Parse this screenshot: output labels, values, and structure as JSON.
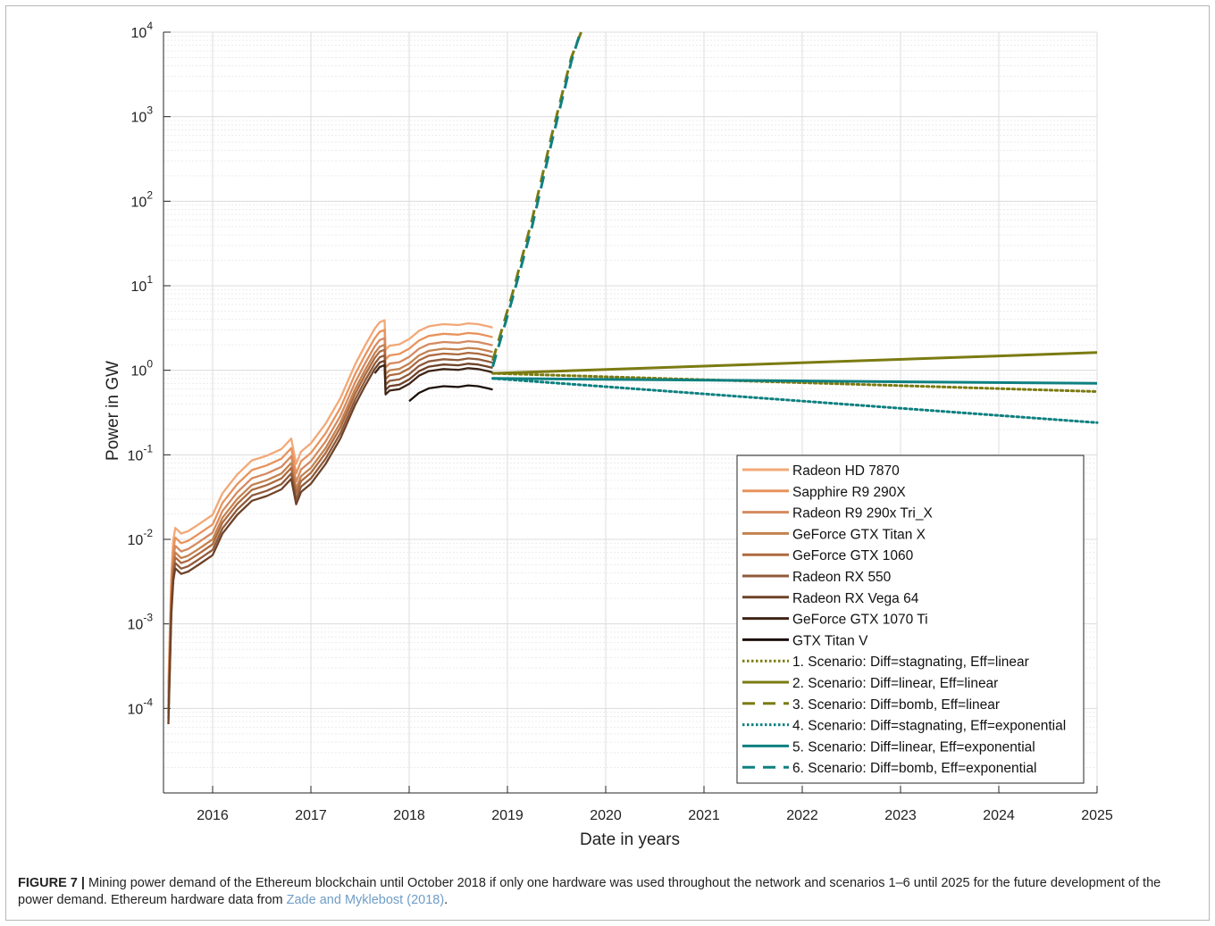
{
  "figure": {
    "caption_lead": "FIGURE 7 |",
    "caption_text": " Mining power demand of the Ethereum blockchain until October 2018 if only one hardware was used throughout the network and scenarios 1–6 until 2025 for the future development of the power demand. Ethereum hardware data from ",
    "caption_ref": "Zade and Myklebost (2018)",
    "caption_end": "."
  },
  "chart_data": {
    "type": "line",
    "xlabel": "Date in years",
    "ylabel": "Power in GW",
    "y_scale": "log",
    "xlim": [
      2015.5,
      2025
    ],
    "ylim": [
      1e-05,
      10000
    ],
    "grid": true,
    "minor_grid": true,
    "legend_position": "bottom-right",
    "x_ticks": [
      "2016",
      "2017",
      "2018",
      "2019",
      "2020",
      "2021",
      "2022",
      "2023",
      "2024",
      "2025"
    ],
    "y_ticks": [
      {
        "base": "10",
        "exp": "-4"
      },
      {
        "base": "10",
        "exp": "-3"
      },
      {
        "base": "10",
        "exp": "-2"
      },
      {
        "base": "10",
        "exp": "-1"
      },
      {
        "base": "10",
        "exp": "0"
      },
      {
        "base": "10",
        "exp": "1"
      },
      {
        "base": "10",
        "exp": "2"
      },
      {
        "base": "10",
        "exp": "3"
      },
      {
        "base": "10",
        "exp": "4"
      }
    ],
    "historical_shape": {
      "x": [
        2015.55,
        2015.58,
        2015.6,
        2015.62,
        2015.68,
        2015.75,
        2015.85,
        2016.0,
        2016.1,
        2016.25,
        2016.4,
        2016.55,
        2016.7,
        2016.8,
        2016.85,
        2016.9,
        2017.0,
        2017.15,
        2017.3,
        2017.45,
        2017.55,
        2017.65,
        2017.7,
        2017.75,
        2017.76,
        2017.8,
        2017.9,
        2018.0,
        2018.1,
        2018.2,
        2018.35,
        2018.5,
        2018.6,
        2018.7,
        2018.8,
        2018.85
      ],
      "y": [
        5e-05,
        0.001,
        0.0025,
        0.0035,
        0.003,
        0.0032,
        0.0038,
        0.005,
        0.009,
        0.015,
        0.022,
        0.025,
        0.03,
        0.04,
        0.02,
        0.028,
        0.035,
        0.06,
        0.12,
        0.3,
        0.5,
        0.8,
        0.95,
        1.0,
        0.45,
        0.5,
        0.52,
        0.6,
        0.75,
        0.85,
        0.9,
        0.88,
        0.92,
        0.9,
        0.85,
        0.82
      ]
    },
    "series": [
      {
        "name": "Radeon HD 7870",
        "color": "#f2a877",
        "style": "solid",
        "factor": 3.9
      },
      {
        "name": "Sapphire R9 290X",
        "color": "#e8935c",
        "style": "solid",
        "factor": 3.0
      },
      {
        "name": "Radeon R9 290x Tri_X",
        "color": "#d58a60",
        "style": "solid",
        "factor": 2.4
      },
      {
        "name": "GeForce GTX Titan X",
        "color": "#c3824f",
        "style": "solid",
        "factor": 2.0
      },
      {
        "name": "GeForce GTX 1060",
        "color": "#ad6a3f",
        "style": "solid",
        "factor": 1.75
      },
      {
        "name": "Radeon RX 550",
        "color": "#8f5a3b",
        "style": "solid",
        "factor": 1.5
      },
      {
        "name": "Radeon RX Vega 64",
        "color": "#6e4228",
        "style": "solid",
        "factor": 1.3
      },
      {
        "name": "GeForce GTX 1070 Ti",
        "color": "#3e2416",
        "style": "solid",
        "factor": 1.15,
        "start": 2017.65
      },
      {
        "name": "GTX Titan V",
        "color": "#1c1009",
        "style": "solid",
        "factor": 0.72,
        "start": 2017.95
      },
      {
        "name": "1. Scenario: Diff=stagnating, Eff=linear",
        "color": "#7b7b12",
        "style": "dotted",
        "x": [
          2018.85,
          2025
        ],
        "y": [
          0.92,
          0.56
        ]
      },
      {
        "name": "2. Scenario: Diff=linear, Eff=linear",
        "color": "#7b7b12",
        "style": "solid",
        "x": [
          2018.85,
          2025
        ],
        "y": [
          0.92,
          1.62
        ]
      },
      {
        "name": "3. Scenario: Diff=bomb, Eff=linear",
        "color": "#7b7b12",
        "style": "dashed",
        "x": [
          2018.85,
          2019.05,
          2019.25,
          2019.45,
          2019.65,
          2019.75
        ],
        "y": [
          1.3,
          8,
          60,
          600,
          5000,
          10000
        ]
      },
      {
        "name": "4. Scenario: Diff=stagnating, Eff=exponential",
        "color": "#0f8080",
        "style": "dotted",
        "x": [
          2018.85,
          2025
        ],
        "y": [
          0.8,
          0.24
        ]
      },
      {
        "name": "5. Scenario: Diff=linear, Eff=exponential",
        "color": "#0f8080",
        "style": "solid",
        "x": [
          2018.85,
          2025
        ],
        "y": [
          0.8,
          0.7
        ]
      },
      {
        "name": "6. Scenario: Diff=bomb, Eff=exponential",
        "color": "#0f8080",
        "style": "dashed",
        "x": [
          2018.85,
          2019.05,
          2019.25,
          2019.45,
          2019.65,
          2019.73
        ],
        "y": [
          1.1,
          7,
          50,
          500,
          4500,
          9000
        ]
      }
    ]
  }
}
